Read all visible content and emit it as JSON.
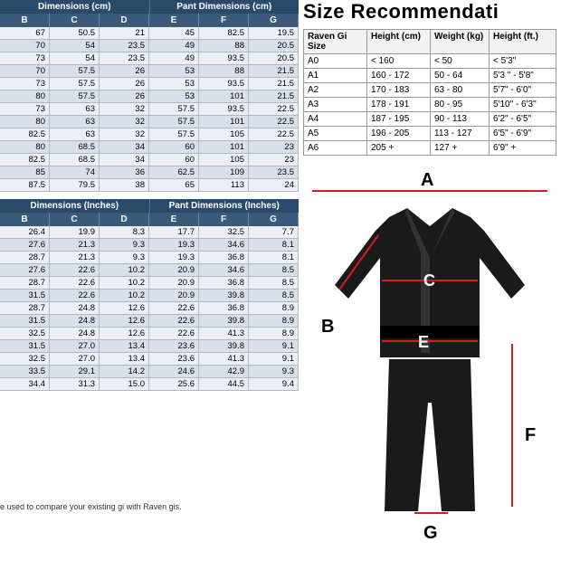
{
  "headers_cm": {
    "group_jacket": "Dimensions (cm)",
    "group_pant": "Pant Dimensions (cm)",
    "cols": [
      "B",
      "C",
      "D",
      "E",
      "F",
      "G"
    ]
  },
  "rows_cm": [
    [
      "67",
      "50.5",
      "21",
      "45",
      "82.5",
      "19.5"
    ],
    [
      "70",
      "54",
      "23.5",
      "49",
      "88",
      "20.5"
    ],
    [
      "73",
      "54",
      "23.5",
      "49",
      "93.5",
      "20.5"
    ],
    [
      "70",
      "57.5",
      "26",
      "53",
      "88",
      "21.5"
    ],
    [
      "73",
      "57.5",
      "26",
      "53",
      "93.5",
      "21.5"
    ],
    [
      "80",
      "57.5",
      "26",
      "53",
      "101",
      "21.5"
    ],
    [
      "73",
      "63",
      "32",
      "57.5",
      "93.5",
      "22.5"
    ],
    [
      "80",
      "63",
      "32",
      "57.5",
      "101",
      "22.5"
    ],
    [
      "82.5",
      "63",
      "32",
      "57.5",
      "105",
      "22.5"
    ],
    [
      "80",
      "68.5",
      "34",
      "60",
      "101",
      "23"
    ],
    [
      "82.5",
      "68.5",
      "34",
      "60",
      "105",
      "23"
    ],
    [
      "85",
      "74",
      "36",
      "62.5",
      "109",
      "23.5"
    ],
    [
      "87.5",
      "79.5",
      "38",
      "65",
      "113",
      "24"
    ]
  ],
  "headers_in": {
    "group_jacket": "Dimensions (Inches)",
    "group_pant": "Pant Dimensions (Inches)",
    "cols": [
      "B",
      "C",
      "D",
      "E",
      "F",
      "G"
    ]
  },
  "rows_in": [
    [
      "26.4",
      "19.9",
      "8.3",
      "17.7",
      "32.5",
      "7.7"
    ],
    [
      "27.6",
      "21.3",
      "9.3",
      "19.3",
      "34.6",
      "8.1"
    ],
    [
      "28.7",
      "21.3",
      "9.3",
      "19.3",
      "36.8",
      "8.1"
    ],
    [
      "27.6",
      "22.6",
      "10.2",
      "20.9",
      "34.6",
      "8.5"
    ],
    [
      "28.7",
      "22.6",
      "10.2",
      "20.9",
      "36.8",
      "8.5"
    ],
    [
      "31.5",
      "22.6",
      "10.2",
      "20.9",
      "39.8",
      "8.5"
    ],
    [
      "28.7",
      "24.8",
      "12.6",
      "22.6",
      "36.8",
      "8.9"
    ],
    [
      "31.5",
      "24.8",
      "12.6",
      "22.6",
      "39.8",
      "8.9"
    ],
    [
      "32.5",
      "24.8",
      "12.6",
      "22.6",
      "41.3",
      "8.9"
    ],
    [
      "31.5",
      "27.0",
      "13.4",
      "23.6",
      "39.8",
      "9.1"
    ],
    [
      "32.5",
      "27.0",
      "13.4",
      "23.6",
      "41.3",
      "9.1"
    ],
    [
      "33.5",
      "29.1",
      "14.2",
      "24.6",
      "42.9",
      "9.3"
    ],
    [
      "34.4",
      "31.3",
      "15.0",
      "25.6",
      "44.5",
      "9.4"
    ]
  ],
  "footnote": "e used to compare your existing gi with Raven gis.",
  "title_right": "Size Recommendati",
  "size_cols": [
    "Raven Gi Size",
    "Height (cm)",
    "Weight (kg)",
    "Height (ft.)"
  ],
  "size_rows": [
    [
      "A0",
      "< 160",
      "< 50",
      "< 5'3\""
    ],
    [
      "A1",
      "160 - 172",
      "50 - 64",
      "5'3 \" - 5'8\""
    ],
    [
      "A2",
      "170 - 183",
      "63 - 80",
      "5'7\" - 6'0\""
    ],
    [
      "A3",
      "178 - 191",
      "80 - 95",
      "5'10\" - 6'3\""
    ],
    [
      "A4",
      "187 - 195",
      "90 - 113",
      "6'2\" - 6'5\""
    ],
    [
      "A5",
      "196 - 205",
      "113 - 127",
      "6'5\" - 6'9\""
    ],
    [
      "A6",
      "205 +",
      "127 +",
      "6'9\" +"
    ]
  ],
  "diagram_labels": {
    "a": "A",
    "b": "B",
    "c": "C",
    "e": "E",
    "f": "F",
    "g": "G"
  },
  "colors": {
    "header_dark": "#2a4a6a",
    "header_mid": "#3a5a7a",
    "row_alt": "#d8e0ec",
    "row_norm": "#ecf0f6",
    "red": "#cc1f1f",
    "gi": "#1a1a1a"
  }
}
